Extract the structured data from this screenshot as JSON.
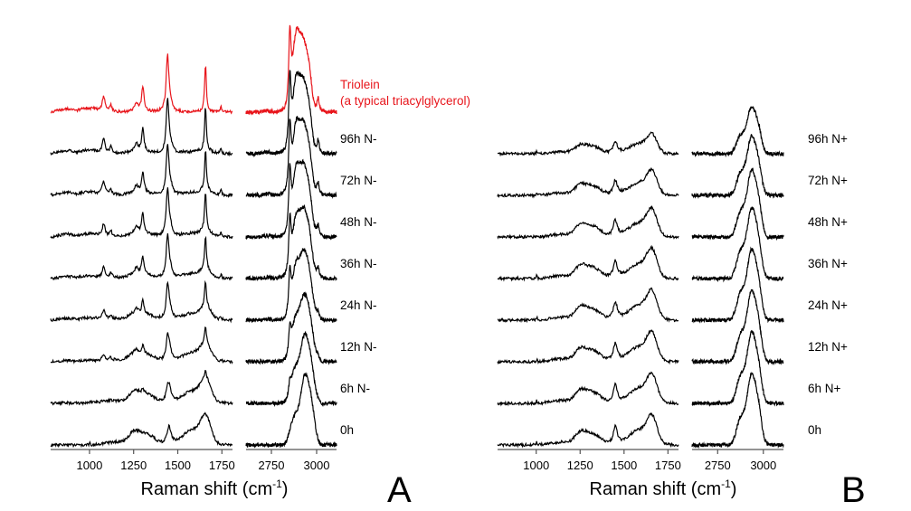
{
  "colors": {
    "trace": "#000000",
    "reference": "#e8151b",
    "axis": "#555555"
  },
  "chart_data": [
    {
      "type": "line",
      "panel_label": "A",
      "xlabel": "Raman shift (cm",
      "xlabel_sup": "-1",
      "xlabel_close": ")",
      "x_ranges": [
        [
          780,
          1810
        ],
        [
          2610,
          3110
        ]
      ],
      "x_ticks_low": [
        1000,
        1250,
        1500,
        1750
      ],
      "x_ticks_high": [
        2750,
        3000
      ],
      "x_tick_labels_low": [
        "1000",
        "1250",
        "1500",
        "1750"
      ],
      "x_tick_labels_high": [
        "2750",
        "3000"
      ],
      "y_axis": "none",
      "series": [
        {
          "name": "Triolein",
          "name_line2": "(a typical triacylglycerol)",
          "color": "#e8151b",
          "reference": true,
          "lipid": 1.0,
          "protein": 0.0
        },
        {
          "name": "96h N-",
          "lipid": 0.92,
          "protein": 0.1
        },
        {
          "name": "72h N-",
          "lipid": 0.85,
          "protein": 0.15
        },
        {
          "name": "48h N-",
          "lipid": 0.8,
          "protein": 0.2
        },
        {
          "name": "36h N-",
          "lipid": 0.68,
          "protein": 0.28
        },
        {
          "name": "24h N-",
          "lipid": 0.55,
          "protein": 0.4
        },
        {
          "name": "12h N-",
          "lipid": 0.35,
          "protein": 0.55
        },
        {
          "name": "6h N-",
          "lipid": 0.15,
          "protein": 0.75
        },
        {
          "name": "0h",
          "lipid": 0.0,
          "protein": 0.9
        }
      ]
    },
    {
      "type": "line",
      "panel_label": "B",
      "xlabel": "Raman shift (cm",
      "xlabel_sup": "-1",
      "xlabel_close": ")",
      "x_ranges": [
        [
          780,
          1810
        ],
        [
          2610,
          3110
        ]
      ],
      "x_ticks_low": [
        1000,
        1250,
        1500,
        1750
      ],
      "x_ticks_high": [
        2750,
        3000
      ],
      "x_tick_labels_low": [
        "1000",
        "1250",
        "1500",
        "1750"
      ],
      "x_tick_labels_high": [
        "2750",
        "3000"
      ],
      "y_axis": "none",
      "series": [
        {
          "name": "96h N+",
          "lipid": 0.0,
          "protein": 0.6
        },
        {
          "name": "72h N+",
          "lipid": 0.0,
          "protein": 0.75
        },
        {
          "name": "48h N+",
          "lipid": 0.0,
          "protein": 0.85
        },
        {
          "name": "36h N+",
          "lipid": 0.0,
          "protein": 0.9
        },
        {
          "name": "24h N+",
          "lipid": 0.0,
          "protein": 0.9
        },
        {
          "name": "12h N+",
          "lipid": 0.0,
          "protein": 0.9
        },
        {
          "name": "6h N+",
          "lipid": 0.0,
          "protein": 0.9
        },
        {
          "name": "0h",
          "lipid": 0.0,
          "protein": 0.9
        }
      ]
    }
  ]
}
